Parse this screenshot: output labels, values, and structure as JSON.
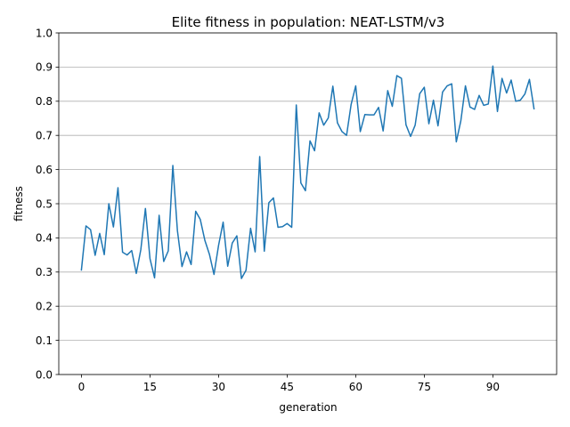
{
  "chart_data": {
    "type": "line",
    "title": "Elite fitness in population: NEAT-LSTM/v3",
    "xlabel": "generation",
    "ylabel": "fitness",
    "xlim": [
      -4.95,
      103.95
    ],
    "ylim": [
      0.0,
      1.0
    ],
    "x_ticks": [
      0,
      15,
      30,
      45,
      60,
      75,
      90
    ],
    "y_ticks": [
      0.0,
      0.1,
      0.2,
      0.3,
      0.4,
      0.5,
      0.6,
      0.7,
      0.8,
      0.9,
      1.0
    ],
    "x_tick_labels": [
      "0",
      "15",
      "30",
      "45",
      "60",
      "75",
      "90"
    ],
    "y_tick_labels": [
      "0.0",
      "0.1",
      "0.2",
      "0.3",
      "0.4",
      "0.5",
      "0.6",
      "0.7",
      "0.8",
      "0.9",
      "1.0"
    ],
    "grid": "y-major",
    "line_color": "#1f77b4",
    "series": [
      {
        "x": [
          0,
          1,
          2,
          3,
          4,
          5,
          6,
          7,
          8,
          9,
          10,
          11,
          12,
          13,
          14,
          15,
          16,
          17,
          18,
          19,
          20,
          21,
          22,
          23,
          24,
          25,
          26,
          27,
          28,
          29,
          30,
          31,
          32,
          33,
          34,
          35,
          36,
          37,
          38,
          39,
          40,
          41,
          42,
          43,
          44,
          45,
          46,
          47,
          48,
          49,
          50,
          51,
          52,
          53,
          54,
          55,
          56,
          57,
          58,
          59,
          60,
          61,
          62,
          63,
          64,
          65,
          66,
          67,
          68,
          69,
          70,
          71,
          72,
          73,
          74,
          75,
          76,
          77,
          78,
          79,
          80,
          81,
          82,
          83,
          84,
          85,
          86,
          87,
          88,
          89,
          90,
          91,
          92,
          93,
          94,
          95,
          96,
          97,
          98,
          99
        ],
        "values": [
          0.306,
          0.435,
          0.424,
          0.349,
          0.413,
          0.351,
          0.5,
          0.432,
          0.547,
          0.358,
          0.35,
          0.363,
          0.296,
          0.366,
          0.486,
          0.339,
          0.283,
          0.466,
          0.331,
          0.362,
          0.612,
          0.421,
          0.316,
          0.359,
          0.322,
          0.478,
          0.454,
          0.393,
          0.352,
          0.293,
          0.378,
          0.446,
          0.317,
          0.385,
          0.406,
          0.281,
          0.305,
          0.428,
          0.359,
          0.638,
          0.361,
          0.503,
          0.517,
          0.431,
          0.433,
          0.442,
          0.431,
          0.789,
          0.561,
          0.538,
          0.684,
          0.655,
          0.766,
          0.73,
          0.751,
          0.844,
          0.737,
          0.711,
          0.7,
          0.791,
          0.845,
          0.711,
          0.761,
          0.76,
          0.76,
          0.782,
          0.713,
          0.831,
          0.785,
          0.875,
          0.867,
          0.731,
          0.697,
          0.73,
          0.822,
          0.841,
          0.734,
          0.803,
          0.728,
          0.827,
          0.845,
          0.851,
          0.681,
          0.743,
          0.845,
          0.783,
          0.776,
          0.817,
          0.788,
          0.792,
          0.903,
          0.77,
          0.867,
          0.824,
          0.862,
          0.8,
          0.803,
          0.821,
          0.864,
          0.778
        ]
      }
    ]
  }
}
